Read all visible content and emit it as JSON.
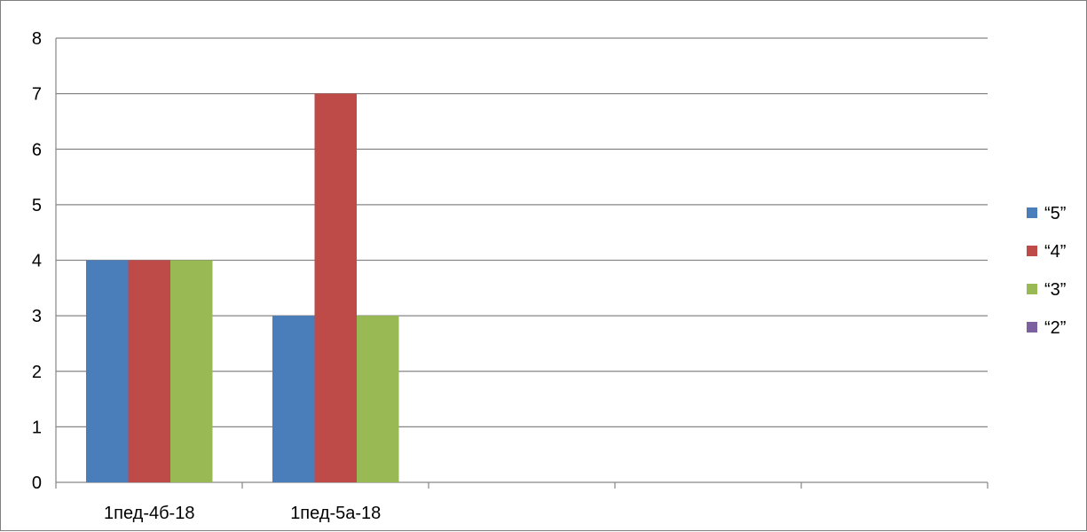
{
  "chart_data": {
    "type": "bar",
    "categories": [
      "1пед-4б-18",
      "1пед-5а-18",
      "",
      "",
      ""
    ],
    "series": [
      {
        "name": "“5”",
        "color": "#4a7ebb",
        "values": [
          4,
          3,
          null,
          null,
          null
        ]
      },
      {
        "name": "“4”",
        "color": "#be4b48",
        "values": [
          4,
          7,
          null,
          null,
          null
        ]
      },
      {
        "name": "“3”",
        "color": "#98b954",
        "values": [
          4,
          3,
          null,
          null,
          null
        ]
      },
      {
        "name": "“2”",
        "color": "#7d60a0",
        "values": [
          0,
          0,
          null,
          null,
          null
        ]
      }
    ],
    "ylim": [
      0,
      8
    ],
    "yticks": [
      "0",
      "1",
      "2",
      "3",
      "4",
      "5",
      "6",
      "7",
      "8"
    ],
    "grid": true,
    "legend_position": "right",
    "title": "",
    "xlabel": "",
    "ylabel": ""
  }
}
